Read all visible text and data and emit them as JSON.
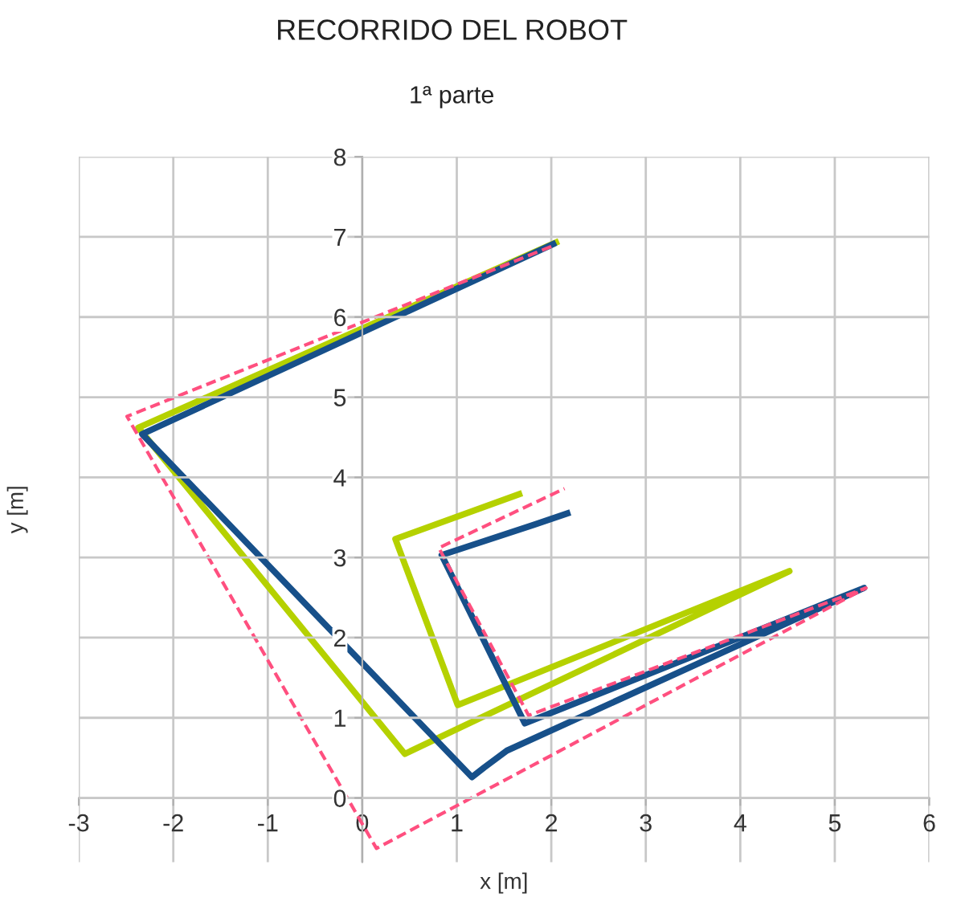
{
  "chart_data": {
    "type": "line",
    "title": "RECORRIDO DEL ROBOT",
    "subtitle": "1ª parte",
    "xlabel": "x [m]",
    "ylabel": "y [m]",
    "xlim": [
      -3,
      6
    ],
    "ylim": [
      -0.8,
      8
    ],
    "xticks": [
      -3,
      -2,
      -1,
      0,
      1,
      2,
      3,
      4,
      5,
      6
    ],
    "yticks": [
      0,
      1,
      2,
      3,
      4,
      5,
      6,
      7,
      8
    ],
    "grid": true,
    "legend": false,
    "marker": "none",
    "series": [
      {
        "color": "#ff4f7f",
        "line_style": "dashed",
        "x": [
          2.0,
          -2.49,
          0.15,
          5.33,
          1.76,
          0.81,
          2.14
        ],
        "values": [
          6.88,
          4.76,
          -0.63,
          2.62,
          1.03,
          3.12,
          3.86
        ]
      },
      {
        "color": "#b5d100",
        "line_style": "solid",
        "x": [
          2.05,
          -2.37,
          0.45,
          4.52,
          1.01,
          0.35,
          1.66
        ],
        "values": [
          6.93,
          4.62,
          0.55,
          2.83,
          1.16,
          3.23,
          3.79
        ]
      },
      {
        "color": "#17508a",
        "line_style": "solid",
        "x": [
          2.02,
          -2.33,
          1.16,
          1.29,
          1.53,
          5.31,
          1.72,
          0.84,
          1.82,
          2.17
        ],
        "values": [
          6.91,
          4.54,
          0.26,
          0.38,
          0.59,
          2.62,
          0.93,
          3.03,
          3.41,
          3.55
        ]
      }
    ]
  }
}
